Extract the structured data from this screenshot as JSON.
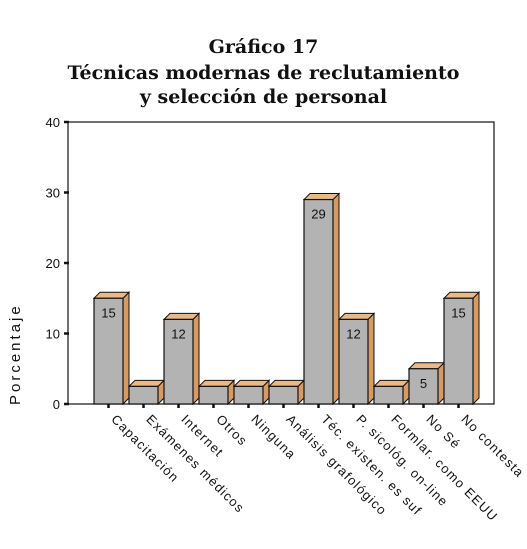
{
  "chart_data": {
    "type": "bar",
    "title": "Gráfico 17",
    "subtitle_line1": "Técnicas modernas de reclutamiento",
    "subtitle_line2": "y selección de personal",
    "xlabel": "",
    "ylabel": "Porcentaje",
    "ylim": [
      0,
      40
    ],
    "yticks": [
      "0",
      "10",
      "20",
      "30",
      "40"
    ],
    "categories": [
      "Capacitación",
      "Exámenes médicos",
      "Internet",
      "Otros",
      "Ninguna",
      "Análisis grafológico",
      "Téc. existen. es suf",
      "P. sicológ. on-line",
      "Formlar. como EEUU",
      "No Sé",
      "No contesta"
    ],
    "values": [
      15,
      2.5,
      12,
      2.5,
      2.5,
      2.5,
      29,
      12,
      2.5,
      5,
      15
    ],
    "data_labels": [
      "15",
      "",
      "12",
      "",
      "",
      "",
      "29",
      "12",
      "",
      "5",
      "15"
    ],
    "grid": false,
    "colors": {
      "bar_front": "#b3b3b3",
      "bar_top": "#e8b98b",
      "bar_side": "#d79a62",
      "axis": "#111111"
    }
  }
}
